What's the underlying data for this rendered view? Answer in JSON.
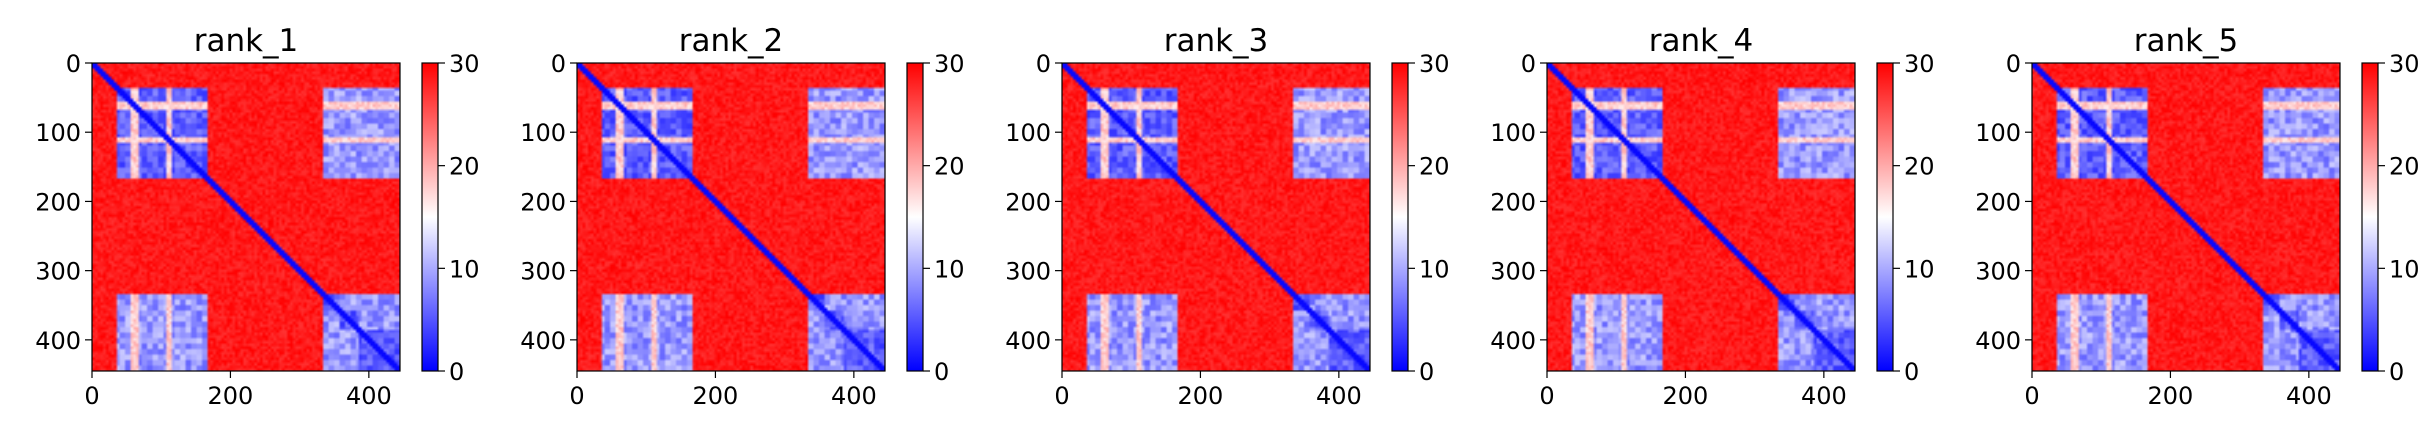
{
  "chart_data": [
    {
      "type": "heatmap",
      "title": "rank_1",
      "x_ticks": [
        0,
        200,
        400
      ],
      "y_ticks": [
        0,
        100,
        200,
        300,
        400
      ],
      "xlim": [
        0,
        445
      ],
      "ylim": [
        445,
        0
      ],
      "matrix_size": 445,
      "colorbar": {
        "ticks": [
          0,
          10,
          20,
          30
        ],
        "vmin": 0,
        "vmax": 30,
        "colormap": "bwr"
      },
      "blocks": [
        [
          0,
          35
        ],
        [
          35,
          165
        ],
        [
          165,
          185
        ],
        [
          185,
          335
        ],
        [
          335,
          360
        ],
        [
          360,
          385
        ],
        [
          385,
          445
        ]
      ],
      "stripes": [
        60,
        110,
        300
      ]
    },
    {
      "type": "heatmap",
      "title": "rank_2",
      "x_ticks": [
        0,
        200,
        400
      ],
      "y_ticks": [
        0,
        100,
        200,
        300,
        400
      ],
      "xlim": [
        0,
        445
      ],
      "ylim": [
        445,
        0
      ],
      "matrix_size": 445,
      "colorbar": {
        "ticks": [
          0,
          10,
          20,
          30
        ],
        "vmin": 0,
        "vmax": 30,
        "colormap": "bwr"
      },
      "blocks": [
        [
          0,
          35
        ],
        [
          35,
          165
        ],
        [
          165,
          185
        ],
        [
          185,
          335
        ],
        [
          335,
          360
        ],
        [
          360,
          385
        ],
        [
          385,
          445
        ]
      ],
      "stripes": [
        60,
        110,
        300
      ]
    },
    {
      "type": "heatmap",
      "title": "rank_3",
      "x_ticks": [
        0,
        200,
        400
      ],
      "y_ticks": [
        0,
        100,
        200,
        300,
        400
      ],
      "xlim": [
        0,
        445
      ],
      "ylim": [
        445,
        0
      ],
      "matrix_size": 445,
      "colorbar": {
        "ticks": [
          0,
          10,
          20,
          30
        ],
        "vmin": 0,
        "vmax": 30,
        "colormap": "bwr"
      },
      "blocks": [
        [
          0,
          35
        ],
        [
          35,
          165
        ],
        [
          165,
          185
        ],
        [
          185,
          335
        ],
        [
          335,
          360
        ],
        [
          360,
          385
        ],
        [
          385,
          445
        ]
      ],
      "stripes": [
        60,
        110,
        300
      ]
    },
    {
      "type": "heatmap",
      "title": "rank_4",
      "x_ticks": [
        0,
        200,
        400
      ],
      "y_ticks": [
        0,
        100,
        200,
        300,
        400
      ],
      "xlim": [
        0,
        445
      ],
      "ylim": [
        445,
        0
      ],
      "matrix_size": 445,
      "colorbar": {
        "ticks": [
          0,
          10,
          20,
          30
        ],
        "vmin": 0,
        "vmax": 30,
        "colormap": "bwr"
      },
      "blocks": [
        [
          0,
          35
        ],
        [
          35,
          165
        ],
        [
          165,
          185
        ],
        [
          185,
          335
        ],
        [
          335,
          360
        ],
        [
          360,
          385
        ],
        [
          385,
          445
        ]
      ],
      "stripes": [
        60,
        110,
        300
      ]
    },
    {
      "type": "heatmap",
      "title": "rank_5",
      "x_ticks": [
        0,
        200,
        400
      ],
      "y_ticks": [
        0,
        100,
        200,
        300,
        400
      ],
      "xlim": [
        0,
        445
      ],
      "ylim": [
        445,
        0
      ],
      "matrix_size": 445,
      "colorbar": {
        "ticks": [
          0,
          10,
          20,
          30
        ],
        "vmin": 0,
        "vmax": 30,
        "colormap": "bwr"
      },
      "blocks": [
        [
          0,
          35
        ],
        [
          35,
          165
        ],
        [
          165,
          185
        ],
        [
          185,
          335
        ],
        [
          335,
          360
        ],
        [
          360,
          385
        ],
        [
          385,
          445
        ]
      ],
      "stripes": [
        60,
        110,
        300
      ]
    }
  ],
  "colors": {
    "low": "#0000ff",
    "mid": "#ffffff",
    "high": "#ff0000"
  }
}
